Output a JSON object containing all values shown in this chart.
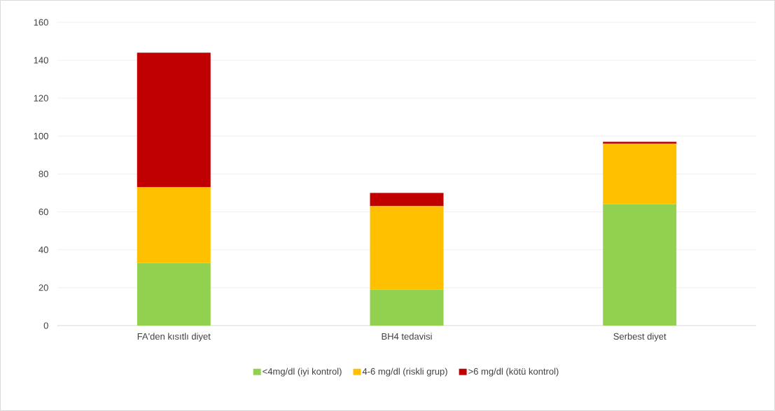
{
  "chart_data": {
    "type": "bar",
    "stacked": true,
    "categories": [
      "FA'den kısıtlı diyet",
      "BH4 tedavisi",
      "Serbest diyet"
    ],
    "series": [
      {
        "name": "<4mg/dl (iyi kontrol)",
        "color": "#92d050",
        "values": [
          33,
          19,
          64
        ]
      },
      {
        "name": "4-6 mg/dl (riskli grup)",
        "color": "#ffc000",
        "values": [
          40,
          44,
          32
        ]
      },
      {
        "name": ">6 mg/dl (kötü kontrol)",
        "color": "#c00000",
        "values": [
          71,
          7,
          1
        ]
      }
    ],
    "ylim": [
      0,
      160
    ],
    "yticks": [
      0,
      20,
      40,
      60,
      80,
      100,
      120,
      140,
      160
    ],
    "grid": "y",
    "legend": "bottom"
  }
}
